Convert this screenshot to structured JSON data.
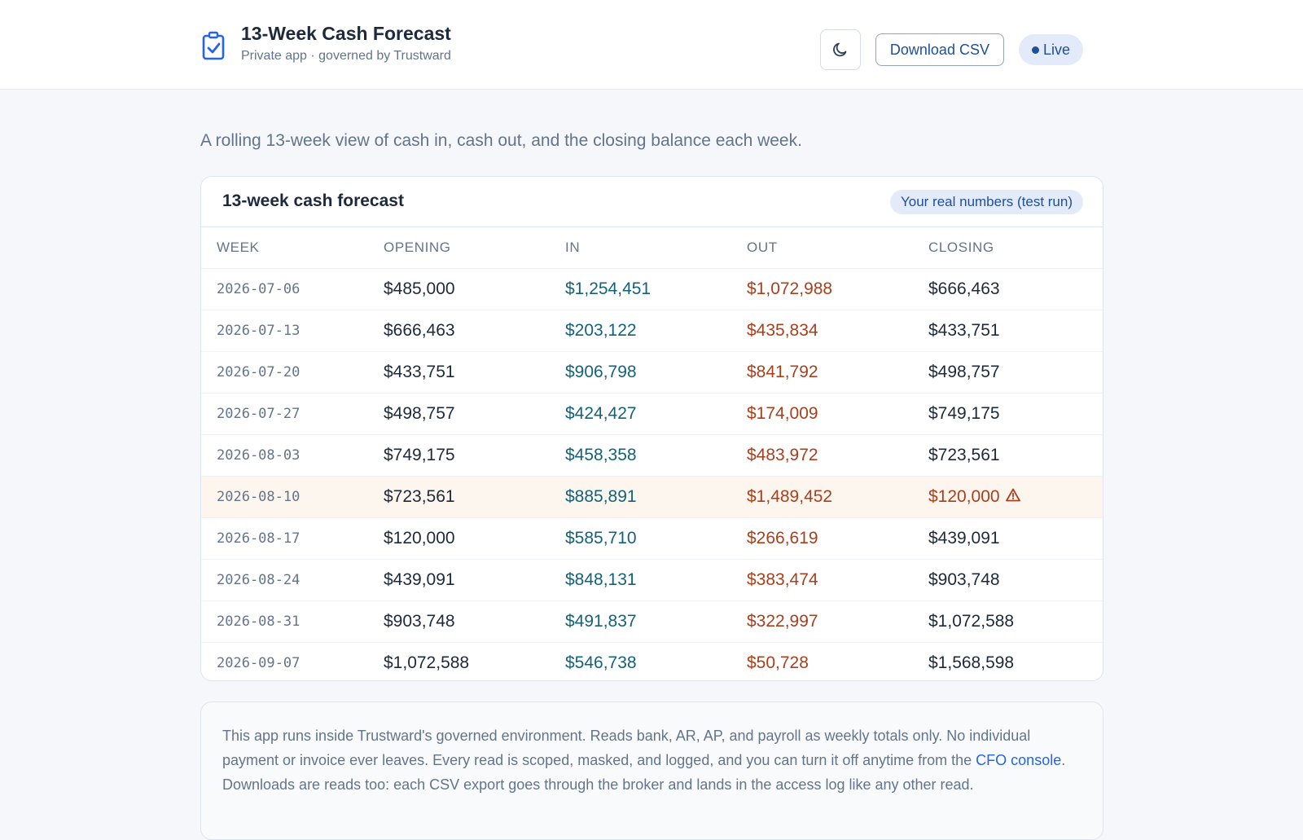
{
  "header": {
    "title": "13-Week Cash Forecast",
    "subtitle": "Private app · governed by Trustward",
    "app_icon": "clipboard-check-icon",
    "theme_toggle_icon": "moon-icon",
    "download_label": "Download CSV",
    "live_label": "Live"
  },
  "intro": "A rolling 13-week view of cash in, cash out, and the closing balance each week.",
  "card": {
    "title": "13-week cash forecast",
    "badge": "Your real numbers (test run)",
    "columns": [
      "Week",
      "Opening",
      "In",
      "Out",
      "Closing"
    ],
    "rows": [
      {
        "week": "2026-07-06",
        "opening": "$485,000",
        "in": "$1,254,451",
        "out": "$1,072,988",
        "closing": "$666,463"
      },
      {
        "week": "2026-07-13",
        "opening": "$666,463",
        "in": "$203,122",
        "out": "$435,834",
        "closing": "$433,751"
      },
      {
        "week": "2026-07-20",
        "opening": "$433,751",
        "in": "$906,798",
        "out": "$841,792",
        "closing": "$498,757"
      },
      {
        "week": "2026-07-27",
        "opening": "$498,757",
        "in": "$424,427",
        "out": "$174,009",
        "closing": "$749,175"
      },
      {
        "week": "2026-08-03",
        "opening": "$749,175",
        "in": "$458,358",
        "out": "$483,972",
        "closing": "$723,561"
      },
      {
        "week": "2026-08-10",
        "opening": "$723,561",
        "in": "$885,891",
        "out": "$1,489,452",
        "closing": "$120,000",
        "alert": true
      },
      {
        "week": "2026-08-17",
        "opening": "$120,000",
        "in": "$585,710",
        "out": "$266,619",
        "closing": "$439,091"
      },
      {
        "week": "2026-08-24",
        "opening": "$439,091",
        "in": "$848,131",
        "out": "$383,474",
        "closing": "$903,748"
      },
      {
        "week": "2026-08-31",
        "opening": "$903,748",
        "in": "$491,837",
        "out": "$322,997",
        "closing": "$1,072,588"
      },
      {
        "week": "2026-09-07",
        "opening": "$1,072,588",
        "in": "$546,738",
        "out": "$50,728",
        "closing": "$1,568,598"
      }
    ]
  },
  "note": {
    "text_before": "This app runs inside Trustward's governed environment. Reads bank, AR, AP, and payroll as weekly totals only. No individual payment or invoice ever leaves. Every read is scoped, masked, and logged, and you can turn it off anytime from the ",
    "link_label": "CFO console",
    "text_after": ". Downloads are reads too: each CSV export goes through the broker and lands in the access log like any other read."
  },
  "colors": {
    "accent": "#1e4f99",
    "in": "#14627a",
    "out": "#a8401e",
    "alert_row_bg": "#fdf6ee",
    "link": "#2563eb"
  }
}
